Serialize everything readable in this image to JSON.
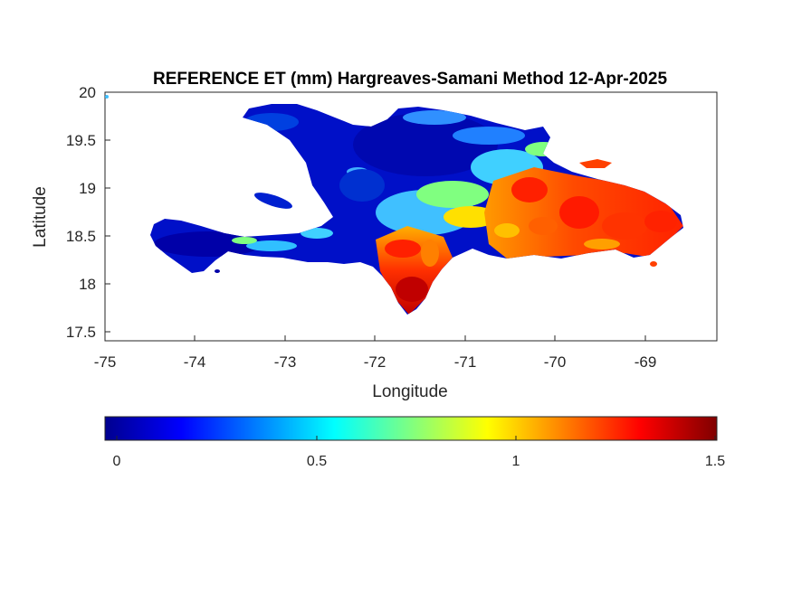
{
  "map": {
    "title": "REFERENCE ET (mm) Hargreaves-Samani Method  12-Apr-2025",
    "xlabel": "Longitude",
    "ylabel": "Latitude",
    "x_ticks": [
      "-75",
      "-74",
      "-73",
      "-72",
      "-71",
      "-70",
      "-69"
    ],
    "y_ticks": [
      "20",
      "19.5",
      "19",
      "18.5",
      "18",
      "17.5"
    ],
    "colorbar_ticks": [
      "0",
      "0.5",
      "1",
      "1.5"
    ],
    "colormap": [
      "#00008f",
      "#0000ff",
      "#0080ff",
      "#00ffff",
      "#80ff80",
      "#ffff00",
      "#ff8000",
      "#ff0000",
      "#800000"
    ]
  },
  "chart_data": {
    "type": "heatmap",
    "title": "REFERENCE ET (mm) Hargreaves-Samani Method  12-Apr-2025",
    "xlabel": "Longitude",
    "ylabel": "Latitude",
    "xlim": [
      -75,
      -68.2
    ],
    "ylim": [
      17.4,
      20
    ],
    "x_ticks": [
      -75,
      -74,
      -73,
      -72,
      -71,
      -70,
      -69
    ],
    "y_ticks": [
      17.5,
      18,
      18.5,
      19,
      19.5,
      20
    ],
    "colorbar_range": [
      0,
      1.5
    ],
    "colorbar_ticks": [
      0,
      0.5,
      1,
      1.5
    ],
    "region_values": [
      {
        "lon": [
          -74.5,
          -73.4
        ],
        "lat": [
          18.2,
          18.6
        ],
        "et": 0.08
      },
      {
        "lon": [
          -73.4,
          -72.4
        ],
        "lat": [
          18.35,
          18.55
        ],
        "et": 0.3
      },
      {
        "lon": [
          -72.8,
          -72.3
        ],
        "lat": [
          18.6,
          19.8
        ],
        "et": 0.1
      },
      {
        "lon": [
          -72.2,
          -70.6
        ],
        "lat": [
          19.1,
          19.9
        ],
        "et": 0.15
      },
      {
        "lon": [
          -72.0,
          -71.2
        ],
        "lat": [
          17.8,
          18.6
        ],
        "et": 1.25
      },
      {
        "lon": [
          -71.2,
          -70.0
        ],
        "lat": [
          18.4,
          19.2
        ],
        "et": 1.1
      },
      {
        "lon": [
          -70.0,
          -68.4
        ],
        "lat": [
          18.3,
          19.0
        ],
        "et": 1.3
      }
    ]
  }
}
